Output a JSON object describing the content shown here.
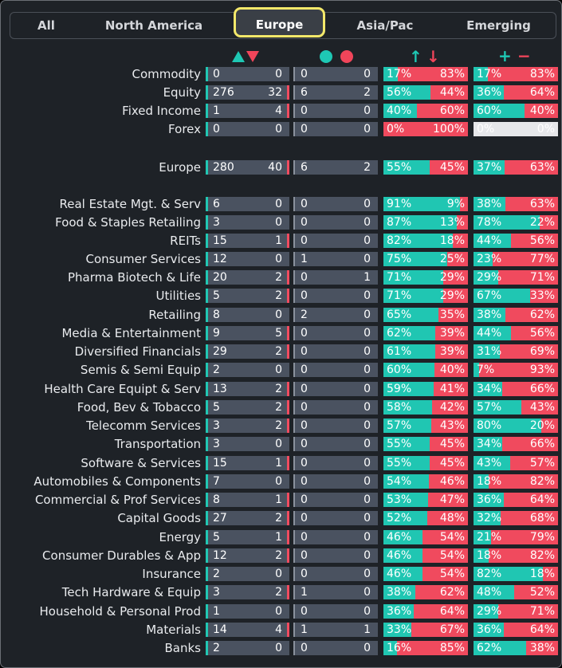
{
  "colors": {
    "green": "#20c6b2",
    "red": "#f04a5e",
    "accent": "#f3e86a"
  },
  "tabs": [
    {
      "label": "All",
      "active": false
    },
    {
      "label": "North America",
      "active": false
    },
    {
      "label": "Europe",
      "active": true
    },
    {
      "label": "Asia/Pac",
      "active": false
    },
    {
      "label": "Emerging",
      "active": false
    }
  ],
  "headers": {
    "col3_up": "↑",
    "col3_down": "↓",
    "col4_plus": "+",
    "col4_minus": "−"
  },
  "rows": [
    {
      "label": "Commodity",
      "a": [
        "0",
        "0"
      ],
      "b": [
        "0",
        "0"
      ],
      "c": [
        17,
        83
      ],
      "d": [
        17,
        83
      ]
    },
    {
      "label": "Equity",
      "a": [
        "276",
        "32"
      ],
      "b": [
        "6",
        "2"
      ],
      "c": [
        56,
        44
      ],
      "d": [
        36,
        64
      ]
    },
    {
      "label": "Fixed Income",
      "a": [
        "1",
        "4"
      ],
      "b": [
        "0",
        "0"
      ],
      "c": [
        40,
        60
      ],
      "d": [
        60,
        40
      ]
    },
    {
      "label": "Forex",
      "a": [
        "0",
        "0"
      ],
      "b": [
        "0",
        "0"
      ],
      "c": [
        0,
        100
      ],
      "d": [
        0,
        0
      ]
    },
    {
      "label": "Europe",
      "a": [
        "280",
        "40"
      ],
      "b": [
        "6",
        "2"
      ],
      "c": [
        55,
        45
      ],
      "d": [
        37,
        63
      ]
    },
    {
      "label": "Real Estate Mgt. & Serv",
      "a": [
        "6",
        "0"
      ],
      "b": [
        "0",
        "0"
      ],
      "c": [
        91,
        9
      ],
      "d": [
        38,
        63
      ]
    },
    {
      "label": "Food & Staples Retailing",
      "a": [
        "3",
        "0"
      ],
      "b": [
        "0",
        "0"
      ],
      "c": [
        87,
        13
      ],
      "d": [
        78,
        22
      ]
    },
    {
      "label": "REITs",
      "a": [
        "15",
        "1"
      ],
      "b": [
        "0",
        "0"
      ],
      "c": [
        82,
        18
      ],
      "d": [
        44,
        56
      ]
    },
    {
      "label": "Consumer Services",
      "a": [
        "12",
        "0"
      ],
      "b": [
        "1",
        "0"
      ],
      "c": [
        75,
        25
      ],
      "d": [
        23,
        77
      ]
    },
    {
      "label": "Pharma Biotech & Life",
      "a": [
        "20",
        "2"
      ],
      "b": [
        "0",
        "1"
      ],
      "c": [
        71,
        29
      ],
      "d": [
        29,
        71
      ]
    },
    {
      "label": "Utilities",
      "a": [
        "5",
        "2"
      ],
      "b": [
        "0",
        "0"
      ],
      "c": [
        71,
        29
      ],
      "d": [
        67,
        33
      ]
    },
    {
      "label": "Retailing",
      "a": [
        "8",
        "0"
      ],
      "b": [
        "2",
        "0"
      ],
      "c": [
        65,
        35
      ],
      "d": [
        38,
        62
      ]
    },
    {
      "label": "Media & Entertainment",
      "a": [
        "9",
        "5"
      ],
      "b": [
        "0",
        "0"
      ],
      "c": [
        62,
        39
      ],
      "d": [
        44,
        56
      ]
    },
    {
      "label": "Diversified Financials",
      "a": [
        "29",
        "2"
      ],
      "b": [
        "0",
        "0"
      ],
      "c": [
        61,
        39
      ],
      "d": [
        31,
        69
      ]
    },
    {
      "label": "Semis & Semi Equip",
      "a": [
        "2",
        "0"
      ],
      "b": [
        "0",
        "0"
      ],
      "c": [
        60,
        40
      ],
      "d": [
        7,
        93
      ]
    },
    {
      "label": "Health Care Equipt & Serv",
      "a": [
        "13",
        "2"
      ],
      "b": [
        "0",
        "0"
      ],
      "c": [
        59,
        41
      ],
      "d": [
        34,
        66
      ]
    },
    {
      "label": "Food, Bev & Tobacco",
      "a": [
        "5",
        "2"
      ],
      "b": [
        "0",
        "0"
      ],
      "c": [
        58,
        42
      ],
      "d": [
        57,
        43
      ]
    },
    {
      "label": "Telecomm Services",
      "a": [
        "3",
        "2"
      ],
      "b": [
        "0",
        "0"
      ],
      "c": [
        57,
        43
      ],
      "d": [
        80,
        20
      ]
    },
    {
      "label": "Transportation",
      "a": [
        "3",
        "0"
      ],
      "b": [
        "0",
        "0"
      ],
      "c": [
        55,
        45
      ],
      "d": [
        34,
        66
      ]
    },
    {
      "label": "Software & Services",
      "a": [
        "15",
        "1"
      ],
      "b": [
        "0",
        "0"
      ],
      "c": [
        55,
        45
      ],
      "d": [
        43,
        57
      ]
    },
    {
      "label": "Automobiles & Components",
      "a": [
        "7",
        "0"
      ],
      "b": [
        "0",
        "0"
      ],
      "c": [
        54,
        46
      ],
      "d": [
        18,
        82
      ]
    },
    {
      "label": "Commercial & Prof Services",
      "a": [
        "8",
        "1"
      ],
      "b": [
        "0",
        "0"
      ],
      "c": [
        53,
        47
      ],
      "d": [
        36,
        64
      ]
    },
    {
      "label": "Capital Goods",
      "a": [
        "27",
        "2"
      ],
      "b": [
        "0",
        "0"
      ],
      "c": [
        52,
        48
      ],
      "d": [
        32,
        68
      ]
    },
    {
      "label": "Energy",
      "a": [
        "5",
        "1"
      ],
      "b": [
        "0",
        "0"
      ],
      "c": [
        46,
        54
      ],
      "d": [
        21,
        79
      ]
    },
    {
      "label": "Consumer Durables & App",
      "a": [
        "12",
        "2"
      ],
      "b": [
        "0",
        "0"
      ],
      "c": [
        46,
        54
      ],
      "d": [
        18,
        82
      ]
    },
    {
      "label": "Insurance",
      "a": [
        "2",
        "0"
      ],
      "b": [
        "0",
        "0"
      ],
      "c": [
        46,
        54
      ],
      "d": [
        82,
        18
      ]
    },
    {
      "label": "Tech Hardware & Equip",
      "a": [
        "3",
        "2"
      ],
      "b": [
        "1",
        "0"
      ],
      "c": [
        38,
        62
      ],
      "d": [
        48,
        52
      ]
    },
    {
      "label": "Household & Personal Prod",
      "a": [
        "1",
        "0"
      ],
      "b": [
        "0",
        "0"
      ],
      "c": [
        36,
        64
      ],
      "d": [
        29,
        71
      ]
    },
    {
      "label": "Materials",
      "a": [
        "14",
        "4"
      ],
      "b": [
        "1",
        "1"
      ],
      "c": [
        33,
        67
      ],
      "d": [
        36,
        64
      ]
    },
    {
      "label": "Banks",
      "a": [
        "2",
        "0"
      ],
      "b": [
        "0",
        "0"
      ],
      "c": [
        16,
        85
      ],
      "d": [
        62,
        38
      ]
    }
  ]
}
